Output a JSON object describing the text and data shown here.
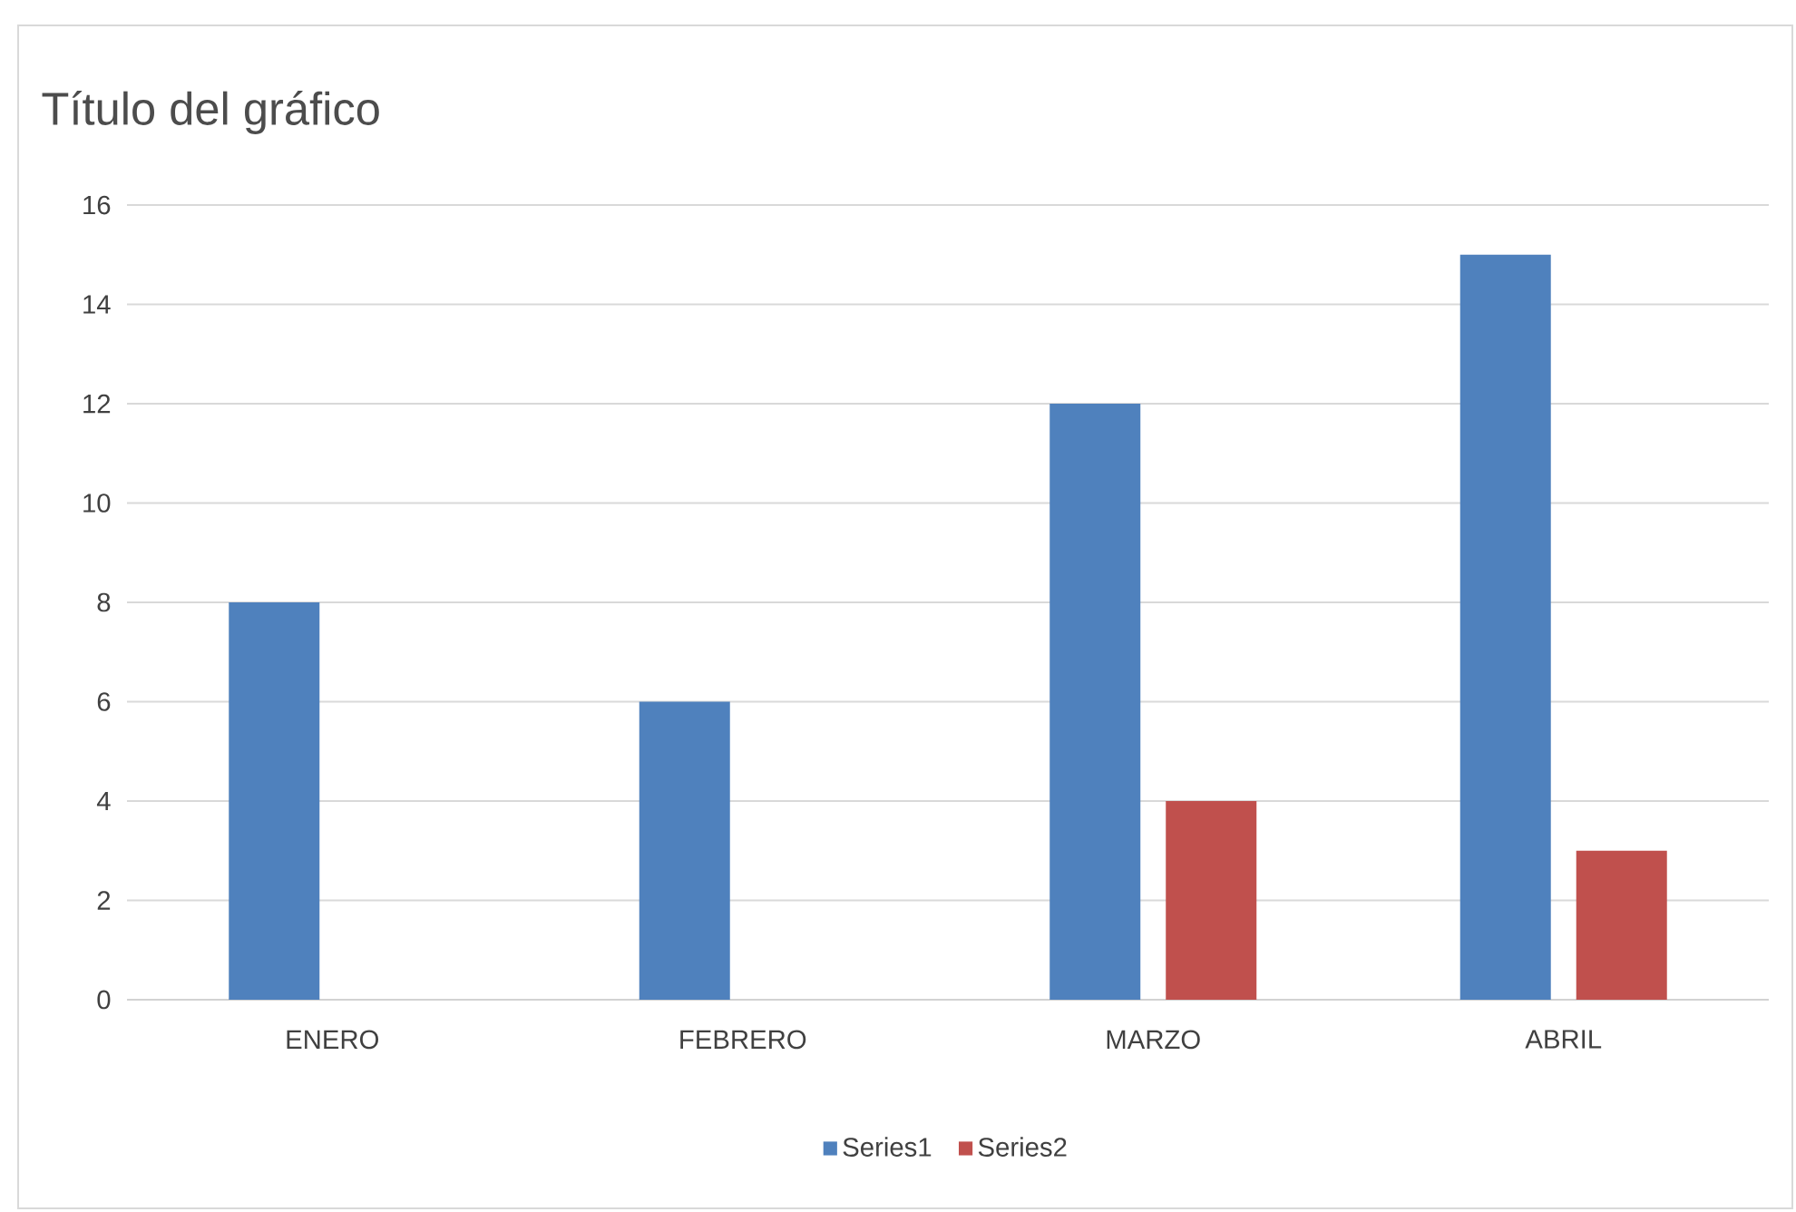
{
  "chart_data": {
    "type": "bar",
    "title": "Título del gráfico",
    "categories": [
      "ENERO",
      "FEBRERO",
      "MARZO",
      "ABRIL"
    ],
    "series": [
      {
        "name": "Series1",
        "color": "#4f81bd",
        "values": [
          8,
          6,
          12,
          15
        ]
      },
      {
        "name": "Series2",
        "color": "#c0504d",
        "values": [
          null,
          null,
          4,
          3
        ]
      }
    ],
    "ylim": [
      0,
      16
    ],
    "yticks": [
      0,
      2,
      4,
      6,
      8,
      10,
      12,
      14,
      16
    ],
    "grid": "y",
    "legend": "bottom"
  }
}
